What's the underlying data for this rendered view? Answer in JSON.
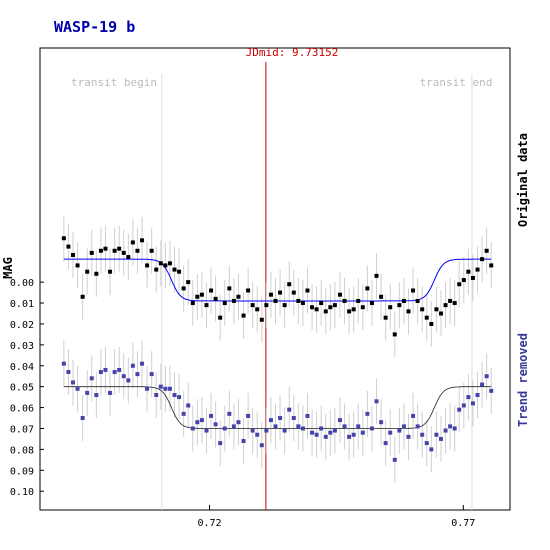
{
  "chart_data": {
    "type": "scatter",
    "title": "WASP-19 b",
    "ylabel": "MAG",
    "xlim": [
      0.6866,
      0.7792
    ],
    "ylim": [
      -0.112,
      0.109
    ],
    "x_ticks": [
      0.72,
      0.77
    ],
    "x_tick_labels": [
      "0.72",
      "0.77"
    ],
    "y_ticks": [
      0.0,
      0.01,
      0.02,
      0.03,
      0.04,
      0.05,
      0.06,
      0.07,
      0.08,
      0.09,
      0.1
    ],
    "y_tick_labels": [
      "0.00",
      "0.01",
      "0.02",
      "0.03",
      "0.04",
      "0.05",
      "0.06",
      "0.07",
      "0.08",
      "0.09",
      "0.10"
    ],
    "midtransit": {
      "label": "JDmid: 9.73152",
      "x": 0.7311
    },
    "transit_begin": {
      "label": "transit begin",
      "x": 0.7106
    },
    "transit_end": {
      "label": "transit end",
      "x": 0.7717
    },
    "series_labels": {
      "original": "Original data",
      "trend_removed": "Trend removed"
    },
    "colors": {
      "original": "#000000",
      "trend_removed": "#4444aa",
      "model_original": "#0000ff",
      "model_trend": "#222222",
      "midline": "#cc0000",
      "error_bar": "#cfcfcf",
      "title": "#0000aa",
      "trend_label": "#3a3a9a"
    },
    "model": {
      "baseline_original": -0.011,
      "baseline_trend": 0.05,
      "depth": 0.02,
      "ingress_center": 0.7125,
      "egress_center": 0.7643,
      "width": 0.0009
    },
    "x": [
      0.6913,
      0.6922,
      0.6931,
      0.694,
      0.695,
      0.6959,
      0.6968,
      0.6977,
      0.6986,
      0.6995,
      0.7004,
      0.7013,
      0.7022,
      0.7031,
      0.704,
      0.7049,
      0.7058,
      0.7067,
      0.7077,
      0.7086,
      0.7095,
      0.7104,
      0.7113,
      0.7122,
      0.7131,
      0.714,
      0.7149,
      0.7158,
      0.7167,
      0.7176,
      0.7185,
      0.7194,
      0.7203,
      0.7212,
      0.7221,
      0.723,
      0.7239,
      0.7248,
      0.7257,
      0.7267,
      0.7276,
      0.7285,
      0.7294,
      0.7303,
      0.7312,
      0.7321,
      0.733,
      0.7339,
      0.7348,
      0.7357,
      0.7366,
      0.7375,
      0.7384,
      0.7393,
      0.7402,
      0.7411,
      0.742,
      0.7429,
      0.7438,
      0.7447,
      0.7457,
      0.7466,
      0.7475,
      0.7484,
      0.7493,
      0.7502,
      0.7511,
      0.752,
      0.7529,
      0.7538,
      0.7547,
      0.7556,
      0.7565,
      0.7574,
      0.7583,
      0.7592,
      0.7601,
      0.761,
      0.7619,
      0.7628,
      0.7637,
      0.7647,
      0.7656,
      0.7665,
      0.7674,
      0.7683,
      0.7692,
      0.7701,
      0.771,
      0.7719,
      0.7728,
      0.7737,
      0.7746,
      0.7755
    ],
    "original": [
      -0.021,
      -0.017,
      -0.013,
      -0.008,
      0.007,
      -0.005,
      -0.014,
      -0.004,
      -0.015,
      -0.016,
      -0.005,
      -0.015,
      -0.016,
      -0.014,
      -0.012,
      -0.019,
      -0.015,
      -0.02,
      -0.008,
      -0.015,
      -0.006,
      -0.009,
      -0.008,
      -0.009,
      -0.006,
      -0.005,
      0.003,
      0.0,
      0.01,
      0.007,
      0.006,
      0.011,
      0.004,
      0.008,
      0.017,
      0.01,
      0.003,
      0.009,
      0.007,
      0.016,
      0.004,
      0.011,
      0.013,
      0.018,
      0.011,
      0.006,
      0.009,
      0.005,
      0.011,
      0.001,
      0.005,
      0.009,
      0.01,
      0.004,
      0.012,
      0.013,
      0.01,
      0.014,
      0.012,
      0.011,
      0.006,
      0.009,
      0.014,
      0.013,
      0.009,
      0.012,
      0.003,
      0.01,
      -0.003,
      0.007,
      0.017,
      0.012,
      0.025,
      0.011,
      0.009,
      0.014,
      0.004,
      0.009,
      0.013,
      0.017,
      0.02,
      0.013,
      0.015,
      0.011,
      0.009,
      0.01,
      0.001,
      -0.001,
      -0.005,
      -0.002,
      -0.006,
      -0.011,
      -0.015,
      -0.008
    ],
    "trend_removed": [
      0.039,
      0.043,
      0.048,
      0.051,
      0.065,
      0.053,
      0.046,
      0.054,
      0.043,
      0.042,
      0.053,
      0.043,
      0.042,
      0.045,
      0.047,
      0.04,
      0.044,
      0.039,
      0.051,
      0.044,
      0.054,
      0.05,
      0.051,
      0.051,
      0.054,
      0.055,
      0.063,
      0.059,
      0.07,
      0.067,
      0.066,
      0.071,
      0.064,
      0.068,
      0.077,
      0.07,
      0.063,
      0.069,
      0.067,
      0.076,
      0.064,
      0.071,
      0.073,
      0.078,
      0.071,
      0.066,
      0.069,
      0.065,
      0.071,
      0.061,
      0.065,
      0.069,
      0.07,
      0.064,
      0.072,
      0.073,
      0.07,
      0.074,
      0.072,
      0.071,
      0.066,
      0.069,
      0.074,
      0.073,
      0.069,
      0.072,
      0.063,
      0.07,
      0.057,
      0.067,
      0.077,
      0.072,
      0.085,
      0.071,
      0.069,
      0.074,
      0.064,
      0.069,
      0.073,
      0.077,
      0.08,
      0.073,
      0.075,
      0.071,
      0.069,
      0.07,
      0.061,
      0.059,
      0.055,
      0.058,
      0.054,
      0.049,
      0.045,
      0.052
    ],
    "error_bar": 0.011
  }
}
